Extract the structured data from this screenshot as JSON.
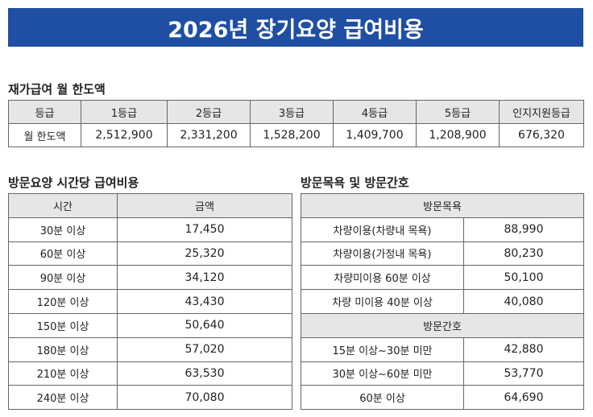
{
  "header": {
    "title": "2026년 장기요양 급여비용"
  },
  "home_care": {
    "title": "재가급여 월 한도액",
    "columns": [
      "등급",
      "1등급",
      "2등급",
      "3등급",
      "4등급",
      "5등급",
      "인지지원등급"
    ],
    "row": [
      "월 한도액",
      "2,512,900",
      "2,331,200",
      "1,528,200",
      "1,409,700",
      "1,208,900",
      "676,320"
    ]
  },
  "visit_care": {
    "title": "방문요양 시간당 급여비용",
    "columns": [
      "시간",
      "금액"
    ],
    "rows": [
      [
        "30분 이상",
        "17,450"
      ],
      [
        "60분 이상",
        "25,320"
      ],
      [
        "90분 이상",
        "34,120"
      ],
      [
        "120분 이상",
        "43,430"
      ],
      [
        "150분 이상",
        "50,640"
      ],
      [
        "180분 이상",
        "57,020"
      ],
      [
        "210분 이상",
        "63,530"
      ],
      [
        "240분 이상",
        "70,080"
      ]
    ]
  },
  "bath_nursing": {
    "title": "방문목욕 및 방문간호",
    "groups": [
      {
        "name": "방문목욕",
        "rows": [
          [
            "차량이용(차량내 목욕)",
            "88,990"
          ],
          [
            "차량이용(가정내 목욕)",
            "80,230"
          ],
          [
            "차량미이용 60분 이상",
            "50,100"
          ],
          [
            "차량 미이용 40분 이상",
            "40,080"
          ]
        ]
      },
      {
        "name": "방문간호",
        "rows": [
          [
            "15분 이상~30분 미만",
            "42,880"
          ],
          [
            "30분 이상~60분 미만",
            "53,770"
          ],
          [
            "60분 이상",
            "64,690"
          ]
        ]
      }
    ]
  }
}
